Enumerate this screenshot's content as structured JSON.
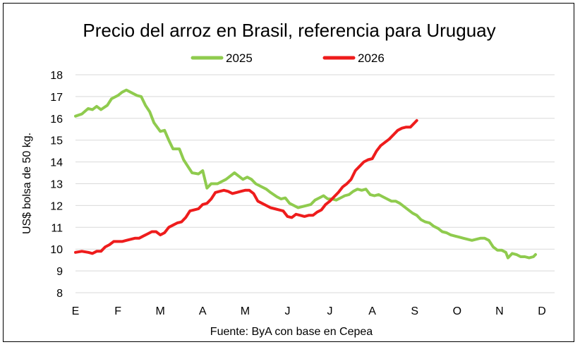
{
  "chart_data": {
    "type": "line",
    "title": "Precio del arroz en Brasil, referencia para Uruguay",
    "ylabel": "US$ bolsa de 50 kg.",
    "xlabel": "",
    "source": "Fuente: ByA con base en Cepea",
    "ylim": [
      8,
      18
    ],
    "yticks": [
      "8",
      "9",
      "10",
      "11",
      "12",
      "13",
      "14",
      "15",
      "16",
      "17",
      "18"
    ],
    "xticks": [
      "E",
      "F",
      "M",
      "A",
      "M",
      "J",
      "J",
      "A",
      "S",
      "O",
      "N",
      "D"
    ],
    "grid": true,
    "legend": "top",
    "x_unit": "month index (0 = start of January, 12 = end of December)",
    "series": [
      {
        "name": "2025",
        "color": "#8fcb4e",
        "points": [
          [
            0.0,
            16.1
          ],
          [
            0.15,
            16.2
          ],
          [
            0.3,
            16.45
          ],
          [
            0.4,
            16.4
          ],
          [
            0.5,
            16.55
          ],
          [
            0.6,
            16.4
          ],
          [
            0.75,
            16.6
          ],
          [
            0.85,
            16.9
          ],
          [
            1.0,
            17.05
          ],
          [
            1.1,
            17.2
          ],
          [
            1.2,
            17.3
          ],
          [
            1.35,
            17.15
          ],
          [
            1.45,
            17.05
          ],
          [
            1.55,
            17.0
          ],
          [
            1.65,
            16.6
          ],
          [
            1.75,
            16.3
          ],
          [
            1.85,
            15.8
          ],
          [
            2.0,
            15.4
          ],
          [
            2.1,
            15.45
          ],
          [
            2.2,
            15.0
          ],
          [
            2.3,
            14.6
          ],
          [
            2.45,
            14.6
          ],
          [
            2.55,
            14.1
          ],
          [
            2.65,
            13.8
          ],
          [
            2.75,
            13.5
          ],
          [
            2.9,
            13.45
          ],
          [
            3.0,
            13.6
          ],
          [
            3.05,
            13.2
          ],
          [
            3.1,
            12.8
          ],
          [
            3.2,
            13.0
          ],
          [
            3.35,
            13.0
          ],
          [
            3.45,
            13.1
          ],
          [
            3.55,
            13.2
          ],
          [
            3.65,
            13.35
          ],
          [
            3.75,
            13.5
          ],
          [
            3.85,
            13.35
          ],
          [
            3.95,
            13.2
          ],
          [
            4.05,
            13.3
          ],
          [
            4.15,
            13.2
          ],
          [
            4.25,
            13.0
          ],
          [
            4.35,
            12.9
          ],
          [
            4.5,
            12.75
          ],
          [
            4.6,
            12.6
          ],
          [
            4.75,
            12.4
          ],
          [
            4.85,
            12.3
          ],
          [
            4.95,
            12.35
          ],
          [
            5.05,
            12.1
          ],
          [
            5.15,
            12.0
          ],
          [
            5.25,
            11.9
          ],
          [
            5.35,
            11.95
          ],
          [
            5.45,
            12.0
          ],
          [
            5.55,
            12.05
          ],
          [
            5.65,
            12.25
          ],
          [
            5.75,
            12.35
          ],
          [
            5.85,
            12.45
          ],
          [
            5.95,
            12.3
          ],
          [
            6.05,
            12.3
          ],
          [
            6.15,
            12.25
          ],
          [
            6.25,
            12.35
          ],
          [
            6.35,
            12.45
          ],
          [
            6.45,
            12.5
          ],
          [
            6.55,
            12.65
          ],
          [
            6.65,
            12.75
          ],
          [
            6.75,
            12.7
          ],
          [
            6.85,
            12.75
          ],
          [
            6.95,
            12.5
          ],
          [
            7.05,
            12.45
          ],
          [
            7.15,
            12.5
          ],
          [
            7.25,
            12.4
          ],
          [
            7.35,
            12.3
          ],
          [
            7.45,
            12.2
          ],
          [
            7.55,
            12.2
          ],
          [
            7.65,
            12.1
          ],
          [
            7.75,
            11.95
          ],
          [
            7.85,
            11.8
          ],
          [
            7.95,
            11.65
          ],
          [
            8.05,
            11.55
          ],
          [
            8.15,
            11.35
          ],
          [
            8.25,
            11.25
          ],
          [
            8.35,
            11.2
          ],
          [
            8.45,
            11.05
          ],
          [
            8.55,
            10.95
          ],
          [
            8.65,
            10.8
          ],
          [
            8.75,
            10.75
          ],
          [
            8.85,
            10.65
          ],
          [
            8.95,
            10.6
          ],
          [
            9.05,
            10.55
          ],
          [
            9.15,
            10.5
          ],
          [
            9.25,
            10.45
          ],
          [
            9.35,
            10.4
          ],
          [
            9.45,
            10.45
          ],
          [
            9.55,
            10.5
          ],
          [
            9.65,
            10.5
          ],
          [
            9.75,
            10.4
          ],
          [
            9.85,
            10.1
          ],
          [
            9.95,
            9.95
          ],
          [
            10.05,
            9.95
          ],
          [
            10.15,
            9.85
          ],
          [
            10.2,
            9.6
          ],
          [
            10.3,
            9.8
          ],
          [
            10.4,
            9.75
          ],
          [
            10.5,
            9.65
          ],
          [
            10.6,
            9.65
          ],
          [
            10.7,
            9.6
          ],
          [
            10.8,
            9.65
          ],
          [
            10.85,
            9.75
          ]
        ]
      },
      {
        "name": "2026",
        "color": "#ee1c1c",
        "points": [
          [
            0.0,
            9.85
          ],
          [
            0.15,
            9.9
          ],
          [
            0.3,
            9.85
          ],
          [
            0.4,
            9.8
          ],
          [
            0.5,
            9.9
          ],
          [
            0.6,
            9.9
          ],
          [
            0.7,
            10.1
          ],
          [
            0.8,
            10.2
          ],
          [
            0.9,
            10.35
          ],
          [
            1.0,
            10.35
          ],
          [
            1.1,
            10.35
          ],
          [
            1.2,
            10.4
          ],
          [
            1.3,
            10.45
          ],
          [
            1.4,
            10.5
          ],
          [
            1.5,
            10.5
          ],
          [
            1.6,
            10.6
          ],
          [
            1.7,
            10.7
          ],
          [
            1.8,
            10.8
          ],
          [
            1.9,
            10.8
          ],
          [
            2.0,
            10.65
          ],
          [
            2.1,
            10.75
          ],
          [
            2.2,
            11.0
          ],
          [
            2.3,
            11.1
          ],
          [
            2.4,
            11.2
          ],
          [
            2.5,
            11.25
          ],
          [
            2.6,
            11.45
          ],
          [
            2.7,
            11.75
          ],
          [
            2.8,
            11.8
          ],
          [
            2.9,
            11.85
          ],
          [
            3.0,
            12.05
          ],
          [
            3.1,
            12.1
          ],
          [
            3.2,
            12.3
          ],
          [
            3.3,
            12.6
          ],
          [
            3.4,
            12.65
          ],
          [
            3.5,
            12.7
          ],
          [
            3.6,
            12.65
          ],
          [
            3.7,
            12.55
          ],
          [
            3.8,
            12.6
          ],
          [
            3.9,
            12.65
          ],
          [
            4.0,
            12.7
          ],
          [
            4.1,
            12.7
          ],
          [
            4.2,
            12.55
          ],
          [
            4.3,
            12.2
          ],
          [
            4.4,
            12.1
          ],
          [
            4.5,
            12.0
          ],
          [
            4.6,
            11.9
          ],
          [
            4.7,
            11.85
          ],
          [
            4.8,
            11.8
          ],
          [
            4.9,
            11.75
          ],
          [
            5.0,
            11.5
          ],
          [
            5.1,
            11.45
          ],
          [
            5.2,
            11.6
          ],
          [
            5.3,
            11.55
          ],
          [
            5.4,
            11.5
          ],
          [
            5.5,
            11.55
          ],
          [
            5.6,
            11.55
          ],
          [
            5.7,
            11.7
          ],
          [
            5.8,
            11.8
          ],
          [
            5.9,
            12.05
          ],
          [
            6.0,
            12.2
          ],
          [
            6.1,
            12.4
          ],
          [
            6.2,
            12.6
          ],
          [
            6.3,
            12.85
          ],
          [
            6.4,
            13.0
          ],
          [
            6.5,
            13.2
          ],
          [
            6.6,
            13.6
          ],
          [
            6.7,
            13.8
          ],
          [
            6.8,
            14.0
          ],
          [
            6.9,
            14.1
          ],
          [
            7.0,
            14.15
          ],
          [
            7.1,
            14.5
          ],
          [
            7.2,
            14.75
          ],
          [
            7.3,
            14.9
          ],
          [
            7.4,
            15.05
          ],
          [
            7.5,
            15.25
          ],
          [
            7.6,
            15.45
          ],
          [
            7.7,
            15.55
          ],
          [
            7.8,
            15.6
          ],
          [
            7.9,
            15.6
          ],
          [
            8.0,
            15.8
          ],
          [
            8.05,
            15.9
          ]
        ]
      }
    ]
  }
}
